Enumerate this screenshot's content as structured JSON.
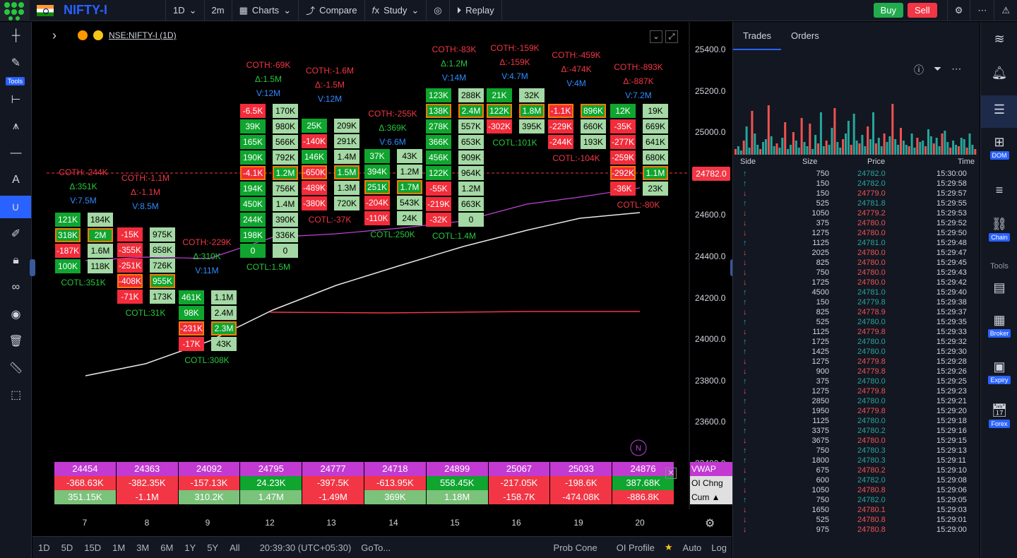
{
  "topbar": {
    "symbol": "NIFTY-I",
    "interval": "1D",
    "interval2": "2m",
    "charts": "Charts",
    "compare": "Compare",
    "study": "Study",
    "replay": "Replay",
    "buy": "Buy",
    "sell": "Sell"
  },
  "legend": {
    "title": "NSE:NIFTY-I (1D)"
  },
  "lefttb": {
    "tools_label": "Tools"
  },
  "yaxis": [
    "25400.0",
    "25200.0",
    "25000.0",
    "24800.0",
    "24600.0",
    "24400.0",
    "24200.0",
    "24000.0",
    "23800.0",
    "23600.0",
    "23400.0"
  ],
  "price_badge": "24782.0",
  "xaxis": [
    "7",
    "8",
    "9",
    "12",
    "13",
    "14",
    "15",
    "16",
    "19",
    "20"
  ],
  "chart_data": {
    "type": "footprint",
    "columns": [
      {
        "day": "7",
        "top": [
          "COTH:-244K",
          "Δ:351K",
          "V:7.5M"
        ],
        "bottom": "COTL:351K",
        "rows": [
          [
            "121K",
            "184K"
          ],
          [
            "318K",
            "2M"
          ],
          [
            "-187K",
            "1.6M"
          ],
          [
            "100K",
            "118K"
          ]
        ]
      },
      {
        "day": "8",
        "top": [
          "COTH:-1.1M",
          "Δ:-1.1M",
          "V:8.5M"
        ],
        "bottom": "COTL:31K",
        "rows": [
          [
            "-15K",
            "975K"
          ],
          [
            "-355K",
            "858K"
          ],
          [
            "-251K",
            "726K"
          ],
          [
            "-408K",
            "955K"
          ],
          [
            "-71K",
            "173K"
          ]
        ]
      },
      {
        "day": "9",
        "top": [
          "COTH:-229K",
          "Δ:310K",
          "V:11M"
        ],
        "bottom": "COTL:308K",
        "rows": [
          [
            "461K",
            "1.1M"
          ],
          [
            "98K",
            "2.4M"
          ],
          [
            "-231K",
            "2.3M"
          ],
          [
            "-17K",
            "43K"
          ]
        ]
      },
      {
        "day": "12",
        "top": [
          "COTH:-69K",
          "Δ:1.5M",
          "V:12M"
        ],
        "bottom": "COTL:1.5M",
        "rows": [
          [
            "-6.5K",
            "170K"
          ],
          [
            "39K",
            "980K"
          ],
          [
            "165K",
            "566K"
          ],
          [
            "190K",
            "792K"
          ],
          [
            "-4.1K",
            "1.2M"
          ],
          [
            "194K",
            "756K"
          ],
          [
            "450K",
            "1.4M"
          ],
          [
            "244K",
            "390K"
          ],
          [
            "198K",
            "336K"
          ],
          [
            "0",
            "0"
          ]
        ]
      },
      {
        "day": "13",
        "top": [
          "COTH:-1.6M",
          "Δ:-1.5M",
          "V:12M"
        ],
        "bottom": "COTL:-37K",
        "rows": [
          [
            "25K",
            "209K"
          ],
          [
            "-140K",
            "291K"
          ],
          [
            "146K",
            "1.4M"
          ],
          [
            "-650K",
            "1.5M"
          ],
          [
            "-489K",
            "1.3M"
          ],
          [
            "-380K",
            "720K"
          ]
        ]
      },
      {
        "day": "14",
        "top": [
          "COTH:-255K",
          "Δ:369K",
          "V:6.6M"
        ],
        "bottom": "COTL:250K",
        "rows": [
          [
            "37K",
            "43K"
          ],
          [
            "394K",
            "1.2M"
          ],
          [
            "251K",
            "1.7M"
          ],
          [
            "-204K",
            "543K"
          ],
          [
            "-110K",
            "24K"
          ]
        ]
      },
      {
        "day": "15",
        "top": [
          "COTH:-83K",
          "Δ:1.2M",
          "V:14M"
        ],
        "bottom": "COTL:1.4M",
        "rows": [
          [
            "123K",
            "288K"
          ],
          [
            "138K",
            "2.4M"
          ],
          [
            "278K",
            "557K"
          ],
          [
            "366K",
            "653K"
          ],
          [
            "456K",
            "909K"
          ],
          [
            "122K",
            "964K"
          ],
          [
            "-55K",
            "1.2M"
          ],
          [
            "-219K",
            "663K"
          ],
          [
            "-32K",
            "0"
          ]
        ]
      },
      {
        "day": "16",
        "top": [
          "COTH:-159K",
          "Δ:-159K",
          "V:4.7M"
        ],
        "bottom": "COTL:101K",
        "rows": [
          [
            "21K",
            "32K"
          ],
          [
            "122K",
            "1.8M"
          ],
          [
            "-302K",
            "395K"
          ]
        ]
      },
      {
        "day": "19",
        "top": [
          "COTH:-459K",
          "Δ:-474K",
          "V:4M"
        ],
        "bottom": "COTL:-104K",
        "rows": [
          [
            "-1.1K",
            "896K"
          ],
          [
            "-229K",
            "660K"
          ],
          [
            "-244K",
            "193K"
          ]
        ]
      },
      {
        "day": "20",
        "top": [
          "COTH:-893K",
          "Δ:-887K",
          "V:7.2M"
        ],
        "bottom": "COTL:-80K",
        "rows": [
          [
            "12K",
            "19K"
          ],
          [
            "-35K",
            "669K"
          ],
          [
            "-277K",
            "641K"
          ],
          [
            "-259K",
            "680K"
          ],
          [
            "-292K",
            "1.1M"
          ],
          [
            "-36K",
            "23K"
          ]
        ]
      }
    ]
  },
  "table": {
    "vwap": [
      "24454",
      "24363",
      "24092",
      "24795",
      "24777",
      "24718",
      "24899",
      "25067",
      "25033",
      "24876"
    ],
    "oi_chng": [
      "-368.63K",
      "-382.35K",
      "-157.13K",
      "24.23K",
      "-397.5K",
      "-613.95K",
      "558.45K",
      "-217.05K",
      "-198.6K",
      "387.68K"
    ],
    "cum": [
      "351.15K",
      "-1.1M",
      "310.2K",
      "1.47M",
      "-1.49M",
      "369K",
      "1.18M",
      "-158.7K",
      "-474.08K",
      "-886.8K"
    ],
    "labels": [
      "VWAP",
      "OI Chng",
      "Cum ▲"
    ]
  },
  "bottombar": {
    "ranges": [
      "1D",
      "5D",
      "15D",
      "1M",
      "3M",
      "6M",
      "1Y",
      "5Y",
      "All"
    ],
    "clock": "20:39:30 (UTC+05:30)",
    "goto": "GoTo...",
    "prob": "Prob Cone",
    "oi": "OI Profile",
    "auto": "Auto",
    "log": "Log"
  },
  "rpanel": {
    "tab1": "Trades",
    "tab2": "Orders",
    "headers": [
      "Side",
      "Size",
      "Price",
      "Time"
    ],
    "trades": [
      [
        "up",
        "750",
        "24782.0",
        "15:30:00"
      ],
      [
        "up",
        "150",
        "24782.0",
        "15:29:58"
      ],
      [
        "down",
        "150",
        "24779.0",
        "15:29:57"
      ],
      [
        "up",
        "525",
        "24781.8",
        "15:29:55"
      ],
      [
        "down",
        "1050",
        "24779.2",
        "15:29:53"
      ],
      [
        "down",
        "375",
        "24780.0",
        "15:29:52"
      ],
      [
        "down",
        "1275",
        "24780.0",
        "15:29:50"
      ],
      [
        "up",
        "1125",
        "24781.0",
        "15:29:48"
      ],
      [
        "down",
        "2025",
        "24780.0",
        "15:29:47"
      ],
      [
        "down",
        "825",
        "24780.0",
        "15:29:45"
      ],
      [
        "down",
        "750",
        "24780.0",
        "15:29:43"
      ],
      [
        "down",
        "1725",
        "24780.0",
        "15:29:42"
      ],
      [
        "up",
        "4500",
        "24781.0",
        "15:29:40"
      ],
      [
        "up",
        "150",
        "24779.8",
        "15:29:38"
      ],
      [
        "down",
        "825",
        "24778.9",
        "15:29:37"
      ],
      [
        "up",
        "525",
        "24780.0",
        "15:29:35"
      ],
      [
        "down",
        "1125",
        "24779.8",
        "15:29:33"
      ],
      [
        "up",
        "1725",
        "24780.0",
        "15:29:32"
      ],
      [
        "up",
        "1425",
        "24780.0",
        "15:29:30"
      ],
      [
        "down",
        "1275",
        "24779.8",
        "15:29:28"
      ],
      [
        "down",
        "900",
        "24779.8",
        "15:29:26"
      ],
      [
        "up",
        "375",
        "24780.0",
        "15:29:25"
      ],
      [
        "down",
        "1275",
        "24779.8",
        "15:29:23"
      ],
      [
        "up",
        "2850",
        "24780.0",
        "15:29:21"
      ],
      [
        "down",
        "1950",
        "24779.8",
        "15:29:20"
      ],
      [
        "up",
        "1125",
        "24780.0",
        "15:29:18"
      ],
      [
        "up",
        "3375",
        "24780.2",
        "15:29:16"
      ],
      [
        "down",
        "3675",
        "24780.0",
        "15:29:15"
      ],
      [
        "up",
        "750",
        "24780.3",
        "15:29:13"
      ],
      [
        "up",
        "1800",
        "24780.3",
        "15:29:11"
      ],
      [
        "down",
        "675",
        "24780.2",
        "15:29:10"
      ],
      [
        "up",
        "600",
        "24782.0",
        "15:29:08"
      ],
      [
        "down",
        "1050",
        "24780.8",
        "15:29:06"
      ],
      [
        "up",
        "750",
        "24782.0",
        "15:29:05"
      ],
      [
        "down",
        "1650",
        "24780.1",
        "15:29:03"
      ],
      [
        "down",
        "525",
        "24780.8",
        "15:29:01"
      ],
      [
        "down",
        "975",
        "24780.8",
        "15:29:00"
      ]
    ]
  },
  "rsidebar": {
    "dom": "DOM",
    "chain": "Chain",
    "tools": "Tools",
    "broker": "Broker",
    "expiry": "Expiry",
    "forex": "Forex"
  },
  "colors": {
    "up": "#26a69a",
    "down": "#ef5350",
    "accent": "#2962ff"
  }
}
